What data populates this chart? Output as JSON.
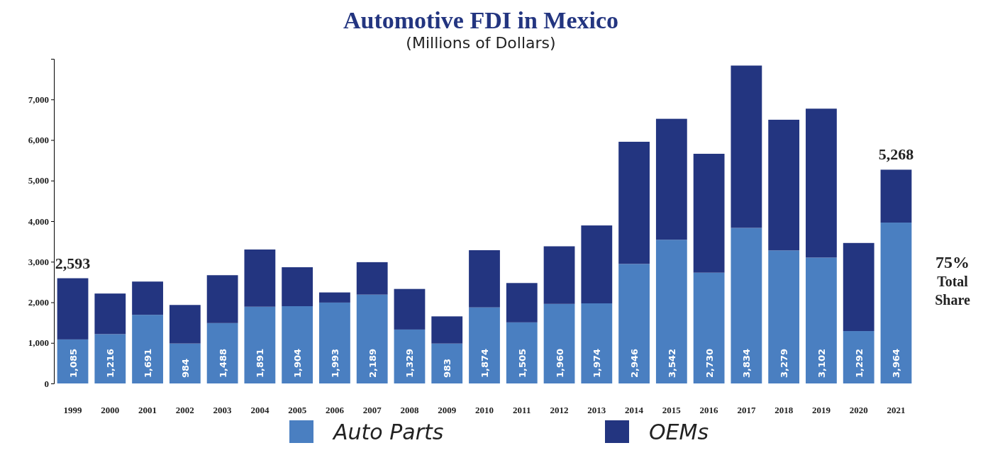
{
  "chart_data": {
    "type": "bar",
    "title": "Automotive FDI in Mexico",
    "subtitle": "(Millions of Dollars)",
    "categories": [
      "1999",
      "2000",
      "2001",
      "2002",
      "2003",
      "2004",
      "2005",
      "2006",
      "2007",
      "2008",
      "2009",
      "2010",
      "2011",
      "2012",
      "2013",
      "2014",
      "2015",
      "2016",
      "2017",
      "2018",
      "2019",
      "2020",
      "2021"
    ],
    "stacked": true,
    "series": [
      {
        "name": "Auto Parts",
        "color": "#4a7fc1",
        "values": [
          1085,
          1216,
          1691,
          984,
          1488,
          1891,
          1904,
          1993,
          2189,
          1329,
          983,
          1874,
          1505,
          1960,
          1974,
          2946,
          3542,
          2730,
          3834,
          3279,
          3102,
          1292,
          3964
        ],
        "value_labels": [
          "1,085",
          "1,216",
          "1,691",
          "984",
          "1,488",
          "1,891",
          "1,904",
          "1,993",
          "2,189",
          "1,329",
          "983",
          "1,874",
          "1,505",
          "1,960",
          "1,974",
          "2,946",
          "3,542",
          "2,730",
          "3,834",
          "3,279",
          "3,102",
          "1,292",
          "3,964"
        ]
      },
      {
        "name": "OEMs",
        "color": "#233580",
        "values": [
          1508,
          1000,
          820,
          950,
          1180,
          1410,
          960,
          250,
          800,
          1000,
          670,
          1410,
          970,
          1420,
          1920,
          3010,
          2980,
          2930,
          4000,
          3220,
          3670,
          2170,
          1304
        ]
      }
    ],
    "totals": [
      "2,593",
      null,
      null,
      null,
      null,
      null,
      null,
      null,
      null,
      null,
      null,
      null,
      null,
      null,
      null,
      null,
      null,
      null,
      null,
      null,
      null,
      null,
      "5,268"
    ],
    "ylim": [
      0,
      8000
    ],
    "yticks": [
      {
        "value": 0,
        "label": "0"
      },
      {
        "value": 1000,
        "label": "1,000"
      },
      {
        "value": 2000,
        "label": "2,000"
      },
      {
        "value": 3000,
        "label": "3,000"
      },
      {
        "value": 4000,
        "label": "4,000"
      },
      {
        "value": 5000,
        "label": "5,000"
      },
      {
        "value": 6000,
        "label": "6,000"
      },
      {
        "value": 7000,
        "label": "7,000"
      }
    ],
    "grid": false,
    "legend": "bottom",
    "annotations": [
      "75% Total Share"
    ]
  }
}
